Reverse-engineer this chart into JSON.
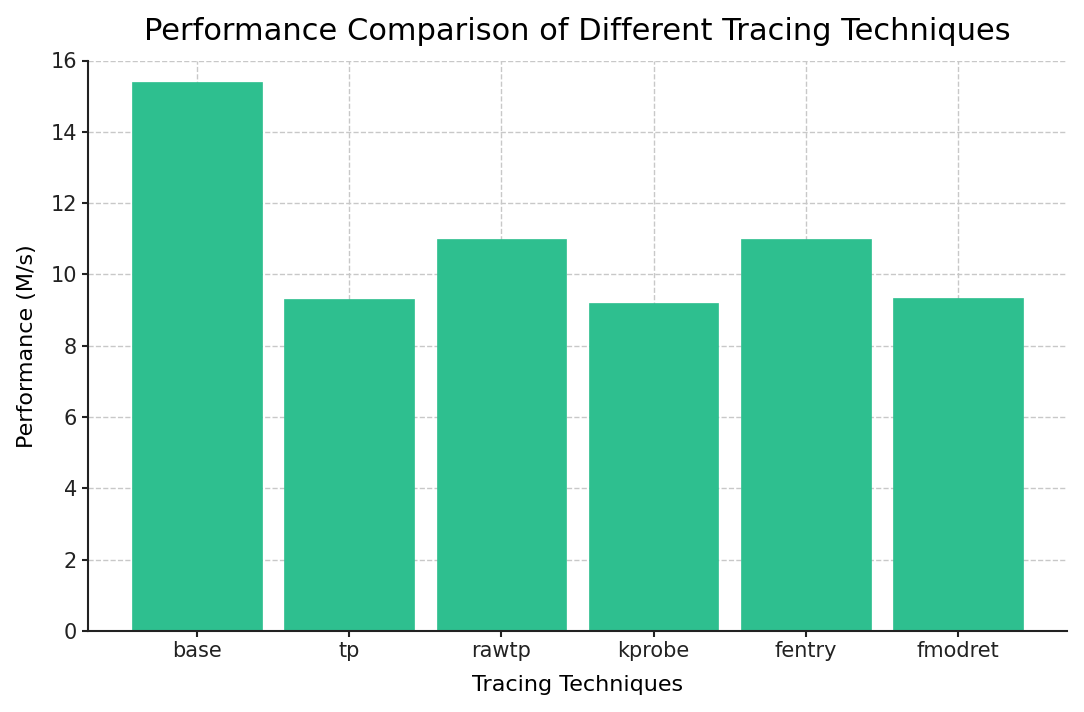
{
  "title": "Performance Comparison of Different Tracing Techniques",
  "xlabel": "Tracing Techniques",
  "ylabel": "Performance (M/s)",
  "categories": [
    "base",
    "tp",
    "rawtp",
    "kprobe",
    "fentry",
    "fmodret"
  ],
  "values": [
    15.4,
    9.3,
    11.0,
    9.2,
    11.0,
    9.35
  ],
  "bar_color": "#2EBF8F",
  "bar_edgecolor": "#2EBF8F",
  "ylim": [
    0,
    16
  ],
  "yticks": [
    0,
    2,
    4,
    6,
    8,
    10,
    12,
    14,
    16
  ],
  "background_color": "#ffffff",
  "grid_color": "#c8c8c8",
  "title_fontsize": 22,
  "label_fontsize": 16,
  "tick_fontsize": 15,
  "bar_width": 0.85
}
